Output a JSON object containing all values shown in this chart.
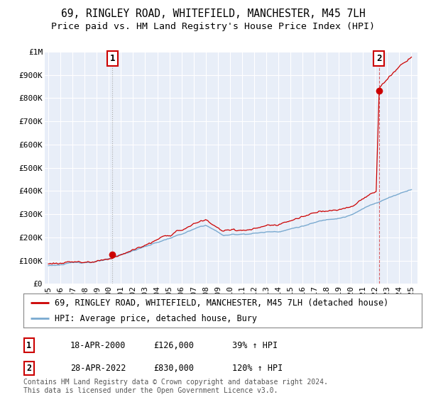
{
  "title": "69, RINGLEY ROAD, WHITEFIELD, MANCHESTER, M45 7LH",
  "subtitle": "Price paid vs. HM Land Registry's House Price Index (HPI)",
  "ylim": [
    0,
    1000000
  ],
  "xlim_start": 1994.7,
  "xlim_end": 2025.5,
  "yticks": [
    0,
    100000,
    200000,
    300000,
    400000,
    500000,
    600000,
    700000,
    800000,
    900000,
    1000000
  ],
  "ytick_labels": [
    "£0",
    "£100K",
    "£200K",
    "£300K",
    "£400K",
    "£500K",
    "£600K",
    "£700K",
    "£800K",
    "£900K",
    "£1M"
  ],
  "xticks": [
    1995,
    1996,
    1997,
    1998,
    1999,
    2000,
    2001,
    2002,
    2003,
    2004,
    2005,
    2006,
    2007,
    2008,
    2009,
    2010,
    2011,
    2012,
    2013,
    2014,
    2015,
    2016,
    2017,
    2018,
    2019,
    2020,
    2021,
    2022,
    2023,
    2024,
    2025
  ],
  "sale1_x": 2000.3,
  "sale1_y": 126000,
  "sale2_x": 2022.32,
  "sale2_y": 830000,
  "sale1_date": "18-APR-2000",
  "sale1_price": "£126,000",
  "sale1_hpi": "39% ↑ HPI",
  "sale2_date": "28-APR-2022",
  "sale2_price": "£830,000",
  "sale2_hpi": "120% ↑ HPI",
  "red_line_color": "#cc0000",
  "blue_line_color": "#7aaad0",
  "background_color": "#e8eef8",
  "grid_color": "#ffffff",
  "legend1": "69, RINGLEY ROAD, WHITEFIELD, MANCHESTER, M45 7LH (detached house)",
  "legend2": "HPI: Average price, detached house, Bury",
  "footnote": "Contains HM Land Registry data © Crown copyright and database right 2024.\nThis data is licensed under the Open Government Licence v3.0.",
  "title_fontsize": 10.5,
  "subtitle_fontsize": 9.5,
  "tick_fontsize": 8,
  "legend_fontsize": 8.5
}
